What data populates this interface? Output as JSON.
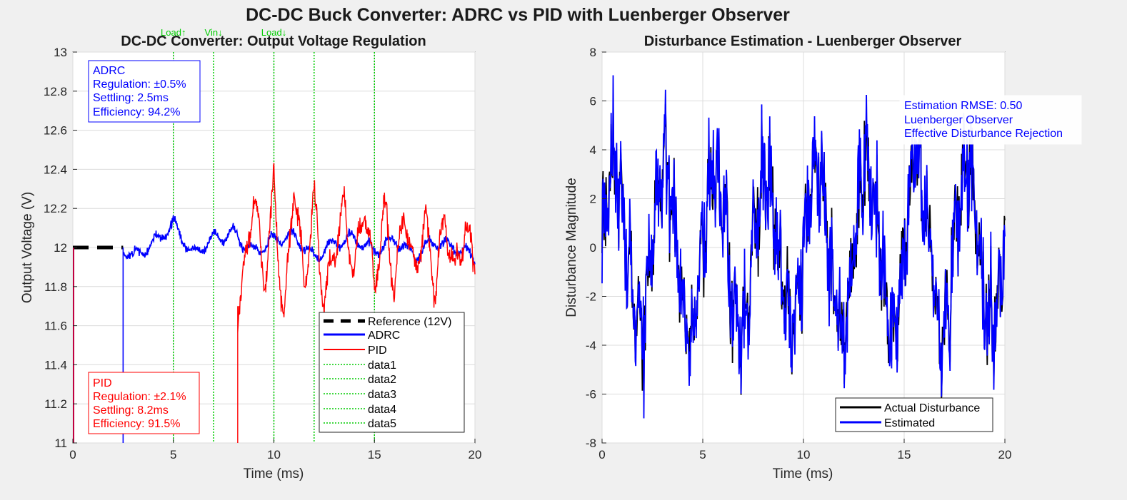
{
  "figure_title": "DC-DC Buck Converter: ADRC vs PID with Luenberger Observer",
  "chart_data": [
    {
      "type": "line",
      "title": "DC-DC Converter: Output Voltage Regulation",
      "xlabel": "Time (ms)",
      "ylabel": "Output Voltage (V)",
      "xlim": [
        0,
        20
      ],
      "ylim": [
        11,
        13
      ],
      "xticks": [
        0,
        5,
        10,
        15,
        20
      ],
      "yticks": [
        11,
        11.2,
        11.4,
        11.6,
        11.8,
        12,
        12.2,
        12.4,
        12.6,
        12.8,
        13
      ],
      "grid": true,
      "legend_position": "bottom-right",
      "legend": [
        "Reference (12V)",
        "ADRC",
        "PID",
        "data1",
        "data2",
        "data3",
        "data4",
        "data5"
      ],
      "colors": {
        "reference": "#000000",
        "adrc": "#0000ff",
        "pid": "#ff0000",
        "events": "#00cc00"
      },
      "reference": {
        "name": "Reference (12V)",
        "value": 12,
        "x_start": 0,
        "x_end": 2.5
      },
      "event_lines": [
        5,
        7,
        10,
        12,
        15
      ],
      "event_labels": [
        {
          "text": "Load↑",
          "x": 5
        },
        {
          "text": "Vin↓",
          "x": 7
        },
        {
          "text": "Load↓",
          "x": 10
        }
      ],
      "series": [
        {
          "name": "ADRC",
          "x": [
            2.5,
            3,
            4,
            5,
            6,
            7,
            8,
            9,
            10,
            11,
            12,
            13,
            14,
            15,
            16,
            17,
            18,
            19,
            20
          ],
          "y": [
            12.0,
            11.95,
            12.02,
            12.12,
            11.96,
            12.05,
            12.07,
            11.98,
            12.04,
            12.06,
            11.95,
            12.02,
            12.05,
            11.98,
            12.04,
            11.96,
            12.03,
            12.0,
            11.95
          ],
          "amplitude": 0.06,
          "drop_from": 11.0,
          "drop_at": 2.5
        },
        {
          "name": "PID",
          "x": [
            8.2,
            8.6,
            9,
            9.5,
            10,
            10.5,
            11,
            11.5,
            12,
            12.5,
            13,
            13.5,
            14,
            14.5,
            15,
            15.5,
            16,
            16.5,
            17,
            17.5,
            18,
            18.5,
            19,
            19.5,
            20
          ],
          "y": [
            11.7,
            11.9,
            12.3,
            11.8,
            12.3,
            11.6,
            12.35,
            11.8,
            12.25,
            11.7,
            12.0,
            12.2,
            11.85,
            12.25,
            11.8,
            12.2,
            11.8,
            12.2,
            11.85,
            12.15,
            11.8,
            12.15,
            11.85,
            12.1,
            11.9
          ],
          "amplitude": 0.18,
          "drop_from": 11.0,
          "drop_at": 8.2,
          "initial": {
            "x": 0,
            "y_from": 11.0,
            "y_to": 12.0
          }
        }
      ],
      "annotations": [
        {
          "name": "adrc-box",
          "color": "#0000ff",
          "lines": [
            "ADRC",
            "Regulation: ±0.5%",
            "Settling: 2.5ms",
            "Efficiency: 94.2%"
          ]
        },
        {
          "name": "pid-box",
          "color": "#ff0000",
          "lines": [
            "PID",
            "Regulation: ±2.1%",
            "Settling: 8.2ms",
            "Efficiency: 91.5%"
          ]
        }
      ]
    },
    {
      "type": "line",
      "title": "Disturbance Estimation - Luenberger Observer",
      "xlabel": "Time (ms)",
      "ylabel": "Disturbance Magnitude",
      "xlim": [
        0,
        20
      ],
      "ylim": [
        -8,
        8
      ],
      "xticks": [
        0,
        5,
        10,
        15,
        20
      ],
      "yticks": [
        -8,
        -6,
        -4,
        -2,
        0,
        2,
        4,
        6,
        8
      ],
      "grid": true,
      "legend_position": "bottom-right",
      "legend": [
        "Actual Disturbance",
        "Estimated"
      ],
      "colors": {
        "actual": "#000000",
        "estimated": "#0000ff"
      },
      "series": [
        {
          "name": "Actual Disturbance",
          "shape": "sum of sines, period ~2.5ms, amplitude ~3 plus noise ~1.5"
        },
        {
          "name": "Estimated",
          "shape": "tracks actual with added noise"
        }
      ],
      "signal": {
        "period_ms": 2.5,
        "amplitude": 3.0,
        "noise": 1.6,
        "peaks": [
          5.8,
          5.2,
          5.6,
          5.0,
          6.2,
          5.4,
          5.8,
          4.9
        ],
        "troughs": [
          -5.8,
          -6.1,
          -5.9,
          -5.6,
          -6.0,
          -5.5,
          -6.4,
          -5.8
        ]
      },
      "annotations": [
        {
          "name": "rmse-box",
          "color": "#0000ff",
          "lines": [
            "Estimation RMSE: 0.50",
            "Luenberger Observer",
            "Effective Disturbance Rejection"
          ]
        }
      ]
    }
  ]
}
